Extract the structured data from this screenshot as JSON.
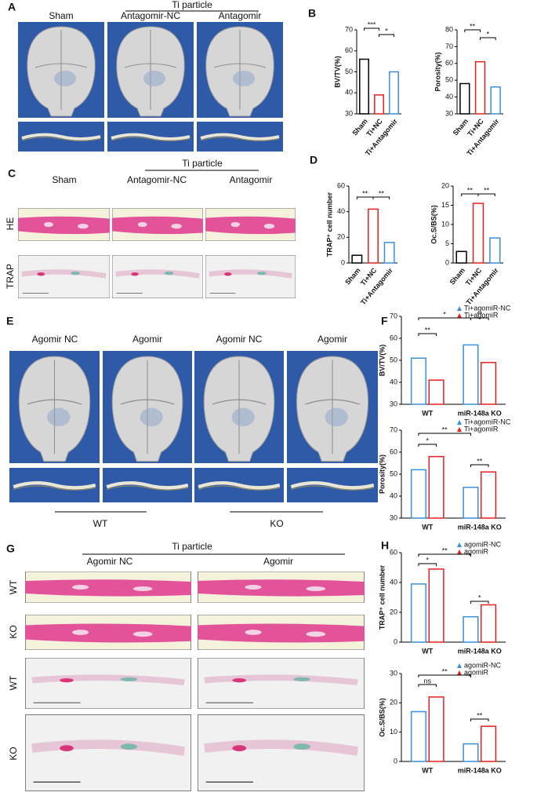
{
  "panels": {
    "A": {
      "label": "A",
      "group": "Ti particle",
      "columns": [
        "Sham",
        "Antagomir-NC",
        "Antagomir"
      ]
    },
    "B": {
      "label": "B"
    },
    "C": {
      "label": "C",
      "group": "Ti particle",
      "columns": [
        "Sham",
        "Antagomir-NC",
        "Antagomir"
      ],
      "rows": [
        "HE",
        "TRAP"
      ]
    },
    "D": {
      "label": "D"
    },
    "E": {
      "label": "E",
      "columns": [
        "Agomir NC",
        "Agomir",
        "Agomir NC",
        "Agomir"
      ],
      "groups": [
        "WT",
        "KO"
      ]
    },
    "F": {
      "label": "F"
    },
    "G": {
      "label": "G",
      "group": "Ti particle",
      "columns": [
        "Agomir NC",
        "Agomir"
      ],
      "rows": [
        "WT",
        "KO",
        "WT",
        "KO"
      ]
    },
    "H": {
      "label": "H"
    }
  },
  "chart_data": [
    {
      "type": "bar",
      "y_label": "BV/TV(%)",
      "categories": [
        "Sham",
        "Ti+NC",
        "Ti+Antagomir"
      ],
      "values": [
        56,
        39,
        50
      ],
      "colors": [
        "#000000",
        "#e8201f",
        "#3b8fd9"
      ],
      "ylim": [
        30,
        70
      ],
      "yticks": [
        30,
        40,
        50,
        60,
        70
      ],
      "annotations": [
        "***",
        "*"
      ]
    },
    {
      "type": "bar",
      "y_label": "Porosity(%)",
      "categories": [
        "Sham",
        "Ti+NC",
        "Ti+Antagomir"
      ],
      "values": [
        48,
        61,
        46
      ],
      "colors": [
        "#000000",
        "#e8201f",
        "#3b8fd9"
      ],
      "ylim": [
        30,
        80
      ],
      "yticks": [
        30,
        40,
        50,
        60,
        70,
        80
      ],
      "annotations": [
        "**",
        "*"
      ]
    },
    {
      "type": "bar",
      "y_label": "TRAP⁺ cell number",
      "categories": [
        "Sham",
        "Ti+NC",
        "Ti+Antagomir"
      ],
      "values": [
        6,
        42,
        16
      ],
      "colors": [
        "#000000",
        "#e8201f",
        "#3b8fd9"
      ],
      "ylim": [
        0,
        60
      ],
      "yticks": [
        0,
        20,
        40,
        60
      ],
      "annotations": [
        "**",
        "**"
      ]
    },
    {
      "type": "bar",
      "y_label": "Oc.S/BS(%)",
      "categories": [
        "Sham",
        "Ti+NC",
        "Ti+Antagomir"
      ],
      "values": [
        3,
        15.5,
        6.5
      ],
      "colors": [
        "#000000",
        "#e8201f",
        "#3b8fd9"
      ],
      "ylim": [
        0,
        20
      ],
      "yticks": [
        0,
        5,
        10,
        15,
        20
      ],
      "annotations": [
        "**",
        "**"
      ]
    },
    {
      "type": "grouped-bar",
      "y_label": "BV/TV(%)",
      "categories": [
        "WT",
        "miR-148a KO"
      ],
      "series": [
        {
          "name": "Ti+agomiR-NC",
          "color": "#3b8fd9",
          "values": [
            51,
            57
          ]
        },
        {
          "name": "Ti+agomiR",
          "color": "#e8201f",
          "values": [
            41,
            49
          ]
        }
      ],
      "ylim": [
        30,
        70
      ],
      "yticks": [
        30,
        40,
        50,
        60,
        70
      ],
      "annotations": [
        "**",
        "*",
        "**"
      ]
    },
    {
      "type": "grouped-bar",
      "y_label": "Porosity(%)",
      "categories": [
        "WT",
        "miR-148a KO"
      ],
      "series": [
        {
          "name": "Ti+agomiR-NC",
          "color": "#3b8fd9",
          "values": [
            52,
            44
          ]
        },
        {
          "name": "Ti+agomiR",
          "color": "#e8201f",
          "values": [
            58,
            51
          ]
        }
      ],
      "ylim": [
        30,
        70
      ],
      "yticks": [
        30,
        40,
        50,
        60,
        70
      ],
      "annotations": [
        "*",
        "**",
        "**"
      ]
    },
    {
      "type": "grouped-bar",
      "y_label": "TRAP⁺ cell number",
      "categories": [
        "WT",
        "miR-148a KO"
      ],
      "series": [
        {
          "name": "agomiR-NC",
          "color": "#3b8fd9",
          "values": [
            39,
            17
          ]
        },
        {
          "name": "agomiR",
          "color": "#e8201f",
          "values": [
            49,
            25
          ]
        }
      ],
      "ylim": [
        0,
        60
      ],
      "yticks": [
        0,
        20,
        40,
        60
      ],
      "annotations": [
        "*",
        "**",
        "*"
      ]
    },
    {
      "type": "grouped-bar",
      "y_label": "Oc.S/BS(%)",
      "categories": [
        "WT",
        "miR-148a KO"
      ],
      "series": [
        {
          "name": "agomiR-NC",
          "color": "#3b8fd9",
          "values": [
            17,
            6
          ]
        },
        {
          "name": "agomiR",
          "color": "#e8201f",
          "values": [
            22,
            12
          ]
        }
      ],
      "ylim": [
        0,
        30
      ],
      "yticks": [
        0,
        10,
        20,
        30
      ],
      "annotations": [
        "ns",
        "**",
        "**"
      ]
    }
  ]
}
